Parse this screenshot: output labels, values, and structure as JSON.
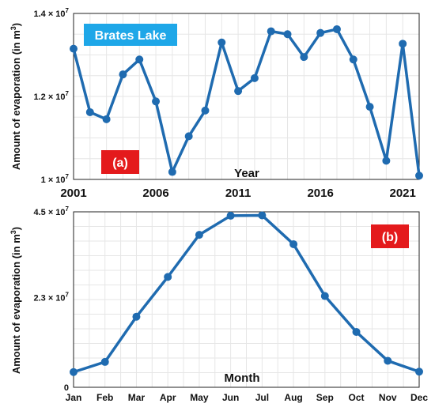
{
  "annotation": {
    "lake_label": "Brates Lake",
    "panel_a": "(a)",
    "panel_b": "(b)"
  },
  "colors": {
    "line": "#1f6bb0",
    "lake_badge": "#1ea7e8",
    "panel_badge": "#e41a1c"
  },
  "chart_data": [
    {
      "type": "line",
      "panel": "(a)",
      "xlabel": "Year",
      "ylabel": "Amount of evaporation (in m³)",
      "x": [
        2001,
        2002,
        2003,
        2004,
        2005,
        2006,
        2007,
        2008,
        2009,
        2010,
        2011,
        2012,
        2013,
        2014,
        2015,
        2016,
        2017,
        2018,
        2019,
        2020,
        2021,
        2022
      ],
      "values": [
        13150000,
        11620000,
        11450000,
        12530000,
        12890000,
        11880000,
        10180000,
        11040000,
        11660000,
        13300000,
        12130000,
        12440000,
        13570000,
        13500000,
        12950000,
        13530000,
        13620000,
        12890000,
        11750000,
        10450000,
        13270000,
        10090000
      ],
      "xlim": [
        2001,
        2022
      ],
      "ylim": [
        10000000,
        14000000
      ],
      "xticks": [
        2001,
        2006,
        2011,
        2016,
        2021
      ],
      "yticks": [
        10000000,
        12000000,
        14000000
      ],
      "ytick_labels": [
        [
          "1",
          "7"
        ],
        [
          "1.2",
          "7"
        ],
        [
          "1.4",
          "7"
        ]
      ],
      "grid": true
    },
    {
      "type": "line",
      "panel": "(b)",
      "xlabel": "Month",
      "ylabel": "Amount of evaporation (in m³)",
      "categories": [
        "Jan",
        "Feb",
        "Mar",
        "Apr",
        "May",
        "Jun",
        "Jul",
        "Aug",
        "Sep",
        "Oct",
        "Nov",
        "Dec"
      ],
      "values": [
        3900000,
        6500000,
        18100000,
        28300000,
        39100000,
        44000000,
        44100000,
        36700000,
        23400000,
        14200000,
        6800000,
        4000000
      ],
      "ylim": [
        0,
        45000000
      ],
      "yticks": [
        0,
        23000000,
        45000000
      ],
      "ytick_labels": [
        [
          "0",
          ""
        ],
        [
          "2.3",
          "7"
        ],
        [
          "4.5",
          "7"
        ]
      ],
      "grid": true
    }
  ]
}
